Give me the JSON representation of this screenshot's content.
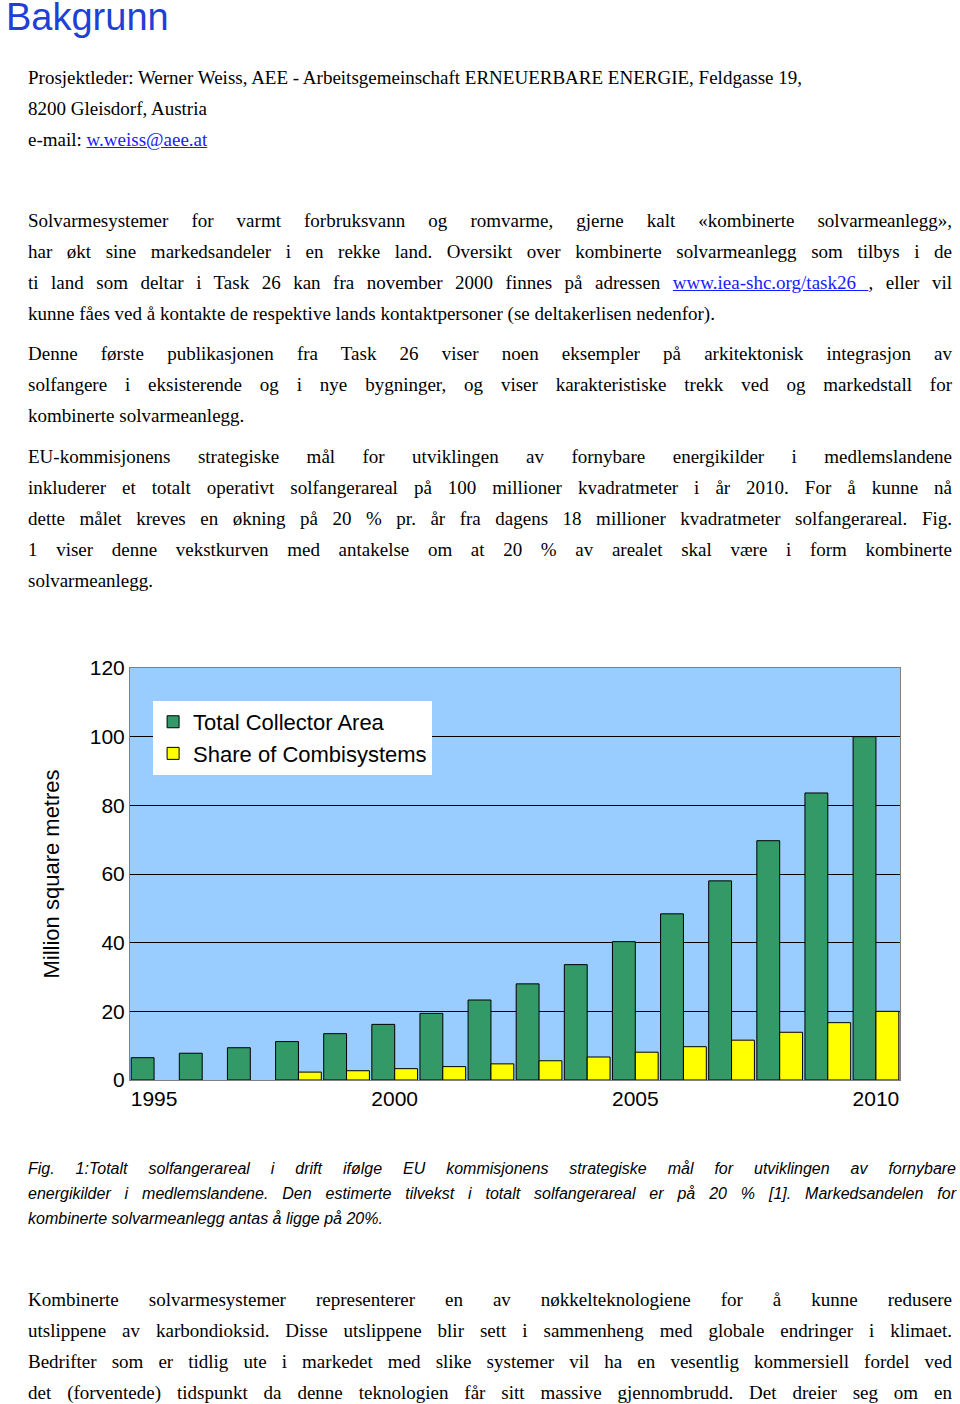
{
  "heading": "Bakgrunn",
  "contact": {
    "lines": [
      "Prosjektleder: Werner Weiss, AEE - Arbeitsgemeinschaft ERNEUERBARE ENERGIE, Feldgasse 19,",
      "8200 Gleisdorf, Austria",
      "e-mail: w.weiss@aee.at"
    ],
    "link": "w.weiss@aee.at"
  },
  "paragraphs": [
    {
      "lines": [
        "Solvarmesystemer for varmt forbruksvann og romvarme, gjerne kalt «kombinerte solvarmeanlegg»,",
        "har økt sine markedsandeler i en rekke land. Oversikt over kombinerte solvarmeanlegg som tilbys i de",
        "ti land som deltar i Task 26 kan fra november 2000 finnes på adressen www.iea-shc.org/task26 , eller vil",
        "kunne fåes ved å kontakte de respektive lands kontaktpersoner (se deltakerlisen nedenfor)."
      ],
      "link": "www.iea-shc.org/task26 "
    },
    {
      "lines": [
        "Denne første publikasjonen fra Task 26 viser noen eksempler på arkitektonisk integrasjon av",
        "solfangere i eksisterende og i nye bygninger, og viser karakteristiske trekk ved og  markedstall for",
        "kombinerte solvarmeanlegg."
      ]
    },
    {
      "lines": [
        "EU-kommisjonens strategiske mål for utviklingen av fornybare energikilder i medlemslandene",
        "inkluderer et totalt operativt solfangerareal på 100 millioner kvadratmeter i år 2010. For å kunne nå",
        "dette målet kreves en økning på 20 % pr. år fra dagens 18 millioner kvadratmeter solfangerareal. Fig.",
        "1 viser denne vekstkurven med antakelse om at 20 % av arealet skal være i form kombinerte",
        "solvarmeanlegg."
      ]
    }
  ],
  "chart_data": {
    "type": "bar",
    "y_label": "Million square metres",
    "x": [
      1995,
      1996,
      1997,
      1998,
      1999,
      2000,
      2001,
      2002,
      2003,
      2004,
      2005,
      2006,
      2007,
      2008,
      2009,
      2010
    ],
    "series": [
      {
        "name": "Total Collector Area",
        "color": "#339966",
        "values": [
          6.5,
          7.8,
          9.4,
          11.2,
          13.5,
          16.2,
          19.4,
          23.3,
          28,
          33.6,
          40.3,
          48.4,
          58,
          69.7,
          83.6,
          100
        ]
      },
      {
        "name": "Share of Combisystems",
        "color": "#ffff00",
        "values": [
          null,
          null,
          null,
          2.3,
          2.7,
          3.3,
          3.9,
          4.7,
          5.6,
          6.7,
          8.1,
          9.7,
          11.6,
          13.9,
          16.7,
          20
        ]
      }
    ],
    "xlim": [
      1994.5,
      2010.5
    ],
    "xticks": [
      1995,
      2000,
      2005,
      2010
    ],
    "ylim": [
      0,
      120
    ],
    "yticks": [
      0,
      20,
      40,
      60,
      80,
      100,
      120
    ],
    "grid": true,
    "legend": "top-left"
  },
  "caption": {
    "lines": [
      "Fig. 1:Totalt solfangerareal i drift ifølge EU kommisjonens strategiske mål for utviklingen av fornybare",
      "energikilder i medlemslandene. Den estimerte tilvekst i totalt solfangerareal er på 20 % [1]. Markedsandelen for",
      "kombinerte solvarmeanlegg antas å ligge på 20%."
    ]
  },
  "closing": {
    "lines": [
      "Kombinerte solvarmesystemer representerer en av nøkkelteknologiene for å kunne redusere",
      "utslippene av karbondioksid. Disse utslippene blir sett i sammenheng med globale endringer i klimaet.",
      "Bedrifter som er tidlig ute i markedet med slike systemer vil ha en vesentlig kommersiell fordel ved",
      "det (forventede) tidspunkt da denne teknologien får sitt massive gjennombrudd. Det dreier seg om en"
    ]
  }
}
